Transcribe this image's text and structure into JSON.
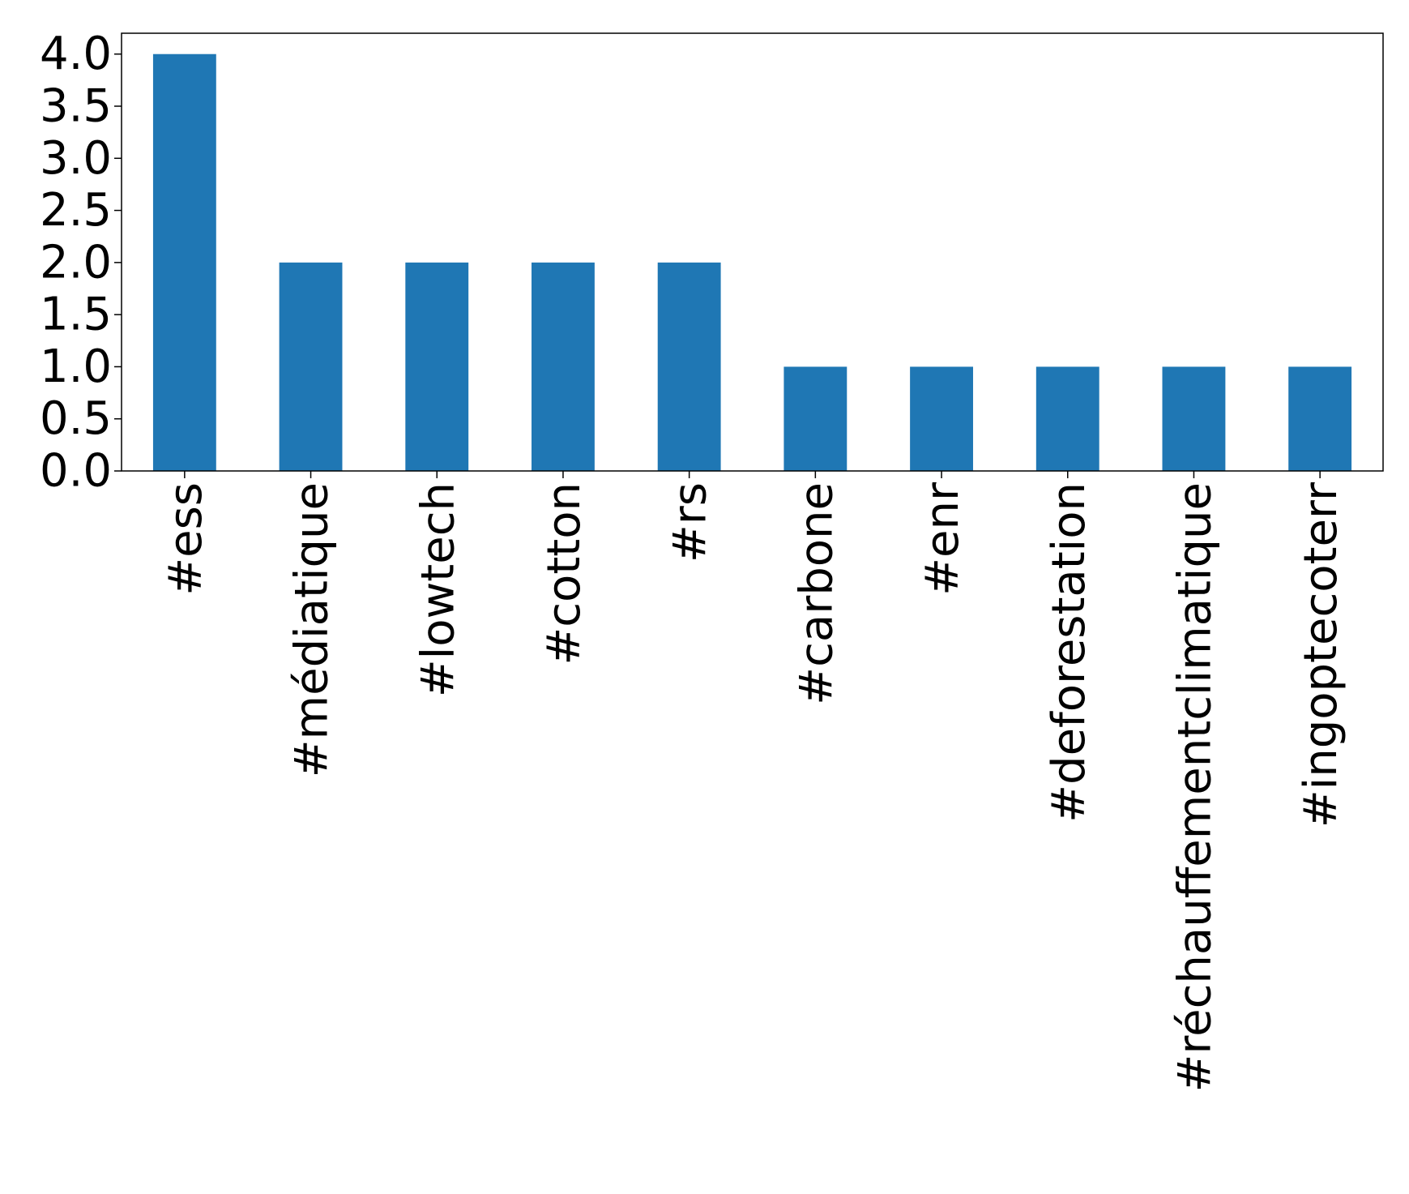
{
  "chart_data": {
    "type": "bar",
    "title": "",
    "xlabel": "",
    "ylabel": "",
    "categories": [
      "#ess",
      "#médiatique",
      "#lowtech",
      "#cotton",
      "#rs",
      "#carbone",
      "#enr",
      "#deforestation",
      "#réchauffementclimatique",
      "#ingoptecoterr"
    ],
    "values": [
      4,
      2,
      2,
      2,
      2,
      1,
      1,
      1,
      1,
      1
    ],
    "ylim": [
      0,
      4.2
    ],
    "yticks": [
      0.0,
      0.5,
      1.0,
      1.5,
      2.0,
      2.5,
      3.0,
      3.5,
      4.0
    ],
    "ytick_labels": [
      "0.0",
      "0.5",
      "1.0",
      "1.5",
      "2.0",
      "2.5",
      "3.0",
      "3.5",
      "4.0"
    ],
    "grid": false,
    "legend": "none",
    "x_tick_rotation": "vertical",
    "colors": {
      "bar": "#1f77b4",
      "axes": "#000000",
      "background": "#ffffff"
    }
  }
}
